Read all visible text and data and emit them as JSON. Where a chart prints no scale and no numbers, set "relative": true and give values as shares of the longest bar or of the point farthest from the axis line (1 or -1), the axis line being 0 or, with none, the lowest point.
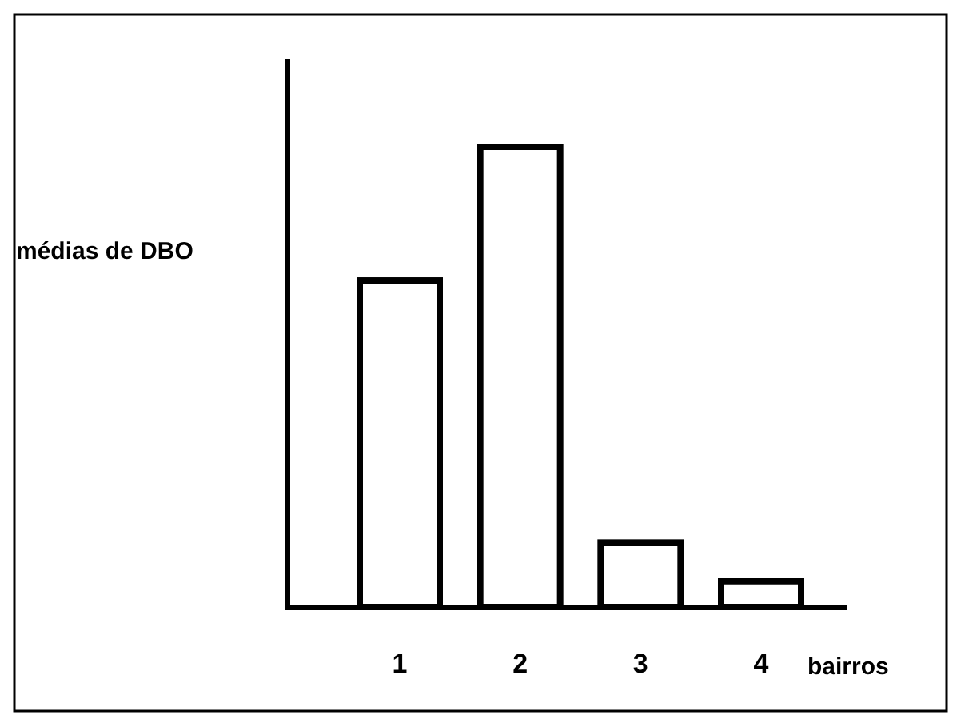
{
  "chart_data": {
    "type": "bar",
    "relative": true,
    "xlabel": "bairros",
    "ylabel": "médias de DBO",
    "categories": [
      "1",
      "2",
      "3",
      "4"
    ],
    "values": [
      0.71,
      1,
      0.14,
      0.056
    ],
    "color": "#ffffff"
  }
}
